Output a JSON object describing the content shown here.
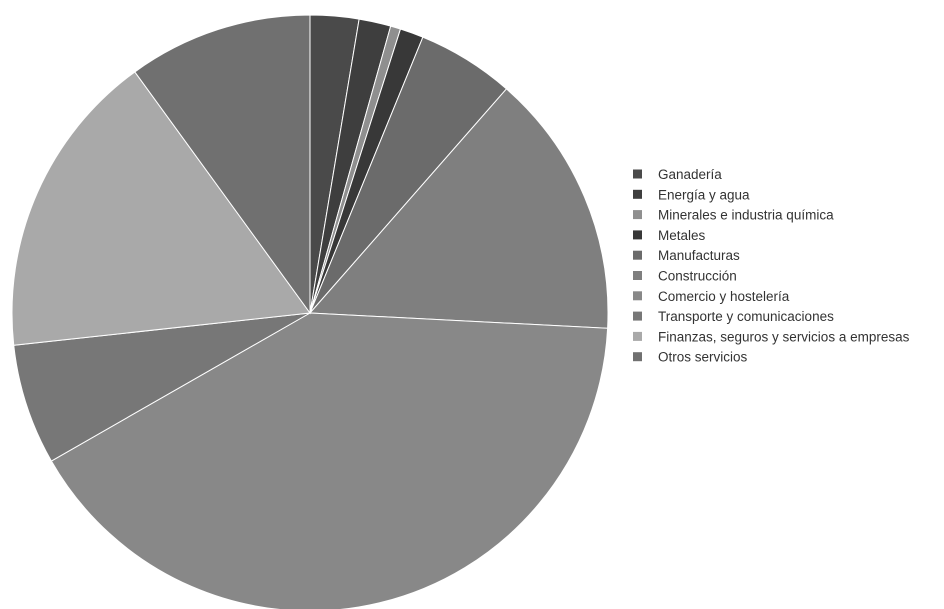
{
  "chart_data": {
    "type": "pie",
    "title": "",
    "legend_position": "right",
    "start_angle_deg": 0,
    "direction": "clockwise",
    "slices": [
      {
        "label": "Ganadería",
        "value": 2.9,
        "color": "#4a4a4a"
      },
      {
        "label": "Energía y agua",
        "value": 1.9,
        "color": "#3e3e3e"
      },
      {
        "label": "Minerales e industria química",
        "value": 0.6,
        "color": "#8f8f8f"
      },
      {
        "label": "Metales",
        "value": 1.4,
        "color": "#383838"
      },
      {
        "label": "Manufacturas",
        "value": 5.8,
        "color": "#6b6b6b"
      },
      {
        "label": "Construcción",
        "value": 15.8,
        "color": "#7f7f7f"
      },
      {
        "label": "Comercio y hostelería",
        "value": 45.0,
        "color": "#888888"
      },
      {
        "label": "Transporte y comunicaciones",
        "value": 7.2,
        "color": "#777777"
      },
      {
        "label": "Finanzas, seguros y servicios a empresas",
        "value": 18.4,
        "color": "#a9a9a9"
      },
      {
        "label": "Otros servicios",
        "value": 11.0,
        "color": "#707070"
      }
    ]
  }
}
